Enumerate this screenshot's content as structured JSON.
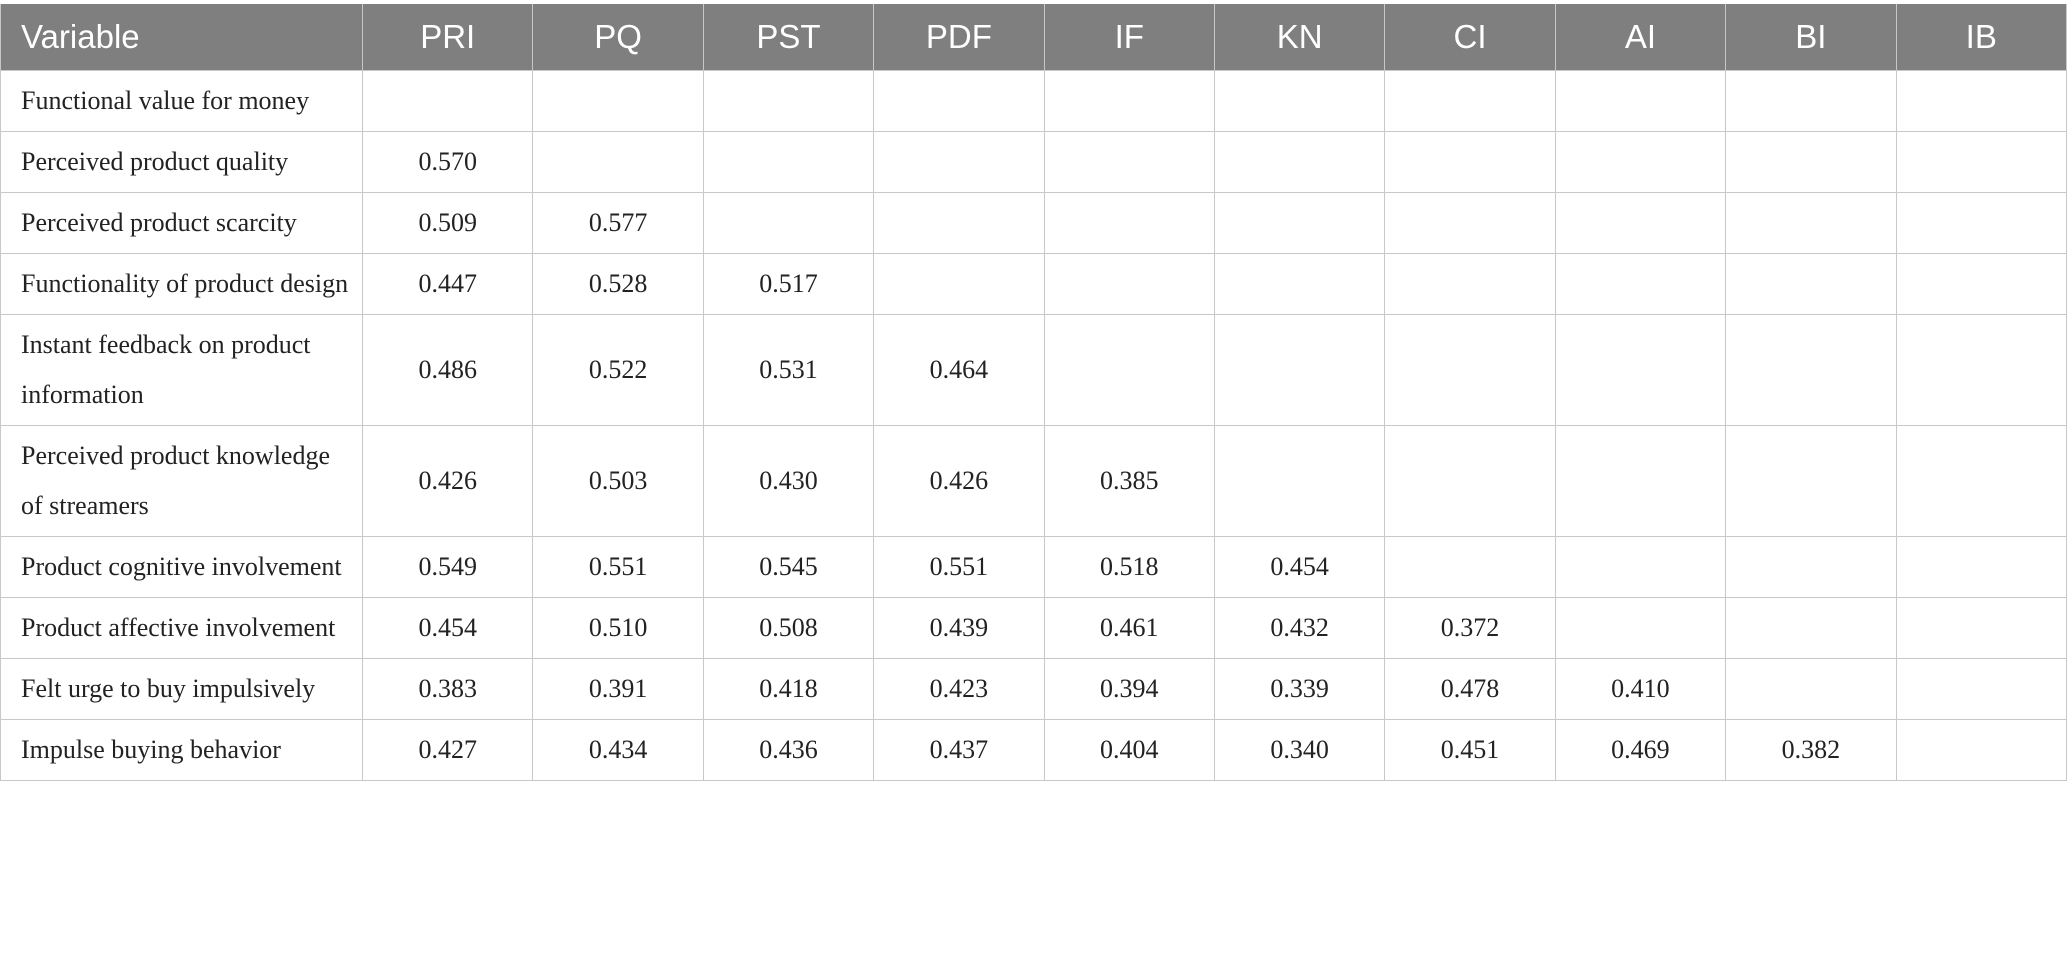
{
  "table": {
    "header": [
      "Variable",
      "PRI",
      "PQ",
      "PST",
      "PDF",
      "IF",
      "KN",
      "CI",
      "AI",
      "BI",
      "IB"
    ],
    "rows": [
      {
        "variable": "Functional value for money",
        "values": []
      },
      {
        "variable": "Perceived product quality",
        "values": [
          "0.570"
        ]
      },
      {
        "variable": "Perceived product scarcity",
        "values": [
          "0.509",
          "0.577"
        ]
      },
      {
        "variable": "Functionality of product design",
        "values": [
          "0.447",
          "0.528",
          "0.517"
        ]
      },
      {
        "variable": "Instant feedback on product information",
        "values": [
          "0.486",
          "0.522",
          "0.531",
          "0.464"
        ]
      },
      {
        "variable": "Perceived product knowledge of streamers",
        "values": [
          "0.426",
          "0.503",
          "0.430",
          "0.426",
          "0.385"
        ]
      },
      {
        "variable": "Product cognitive involvement",
        "values": [
          "0.549",
          "0.551",
          "0.545",
          "0.551",
          "0.518",
          "0.454"
        ]
      },
      {
        "variable": "Product affective involvement",
        "values": [
          "0.454",
          "0.510",
          "0.508",
          "0.439",
          "0.461",
          "0.432",
          "0.372"
        ]
      },
      {
        "variable": "Felt urge to buy impulsively",
        "values": [
          "0.383",
          "0.391",
          "0.418",
          "0.423",
          "0.394",
          "0.339",
          "0.478",
          "0.410"
        ]
      },
      {
        "variable": "Impulse buying behavior",
        "values": [
          "0.427",
          "0.434",
          "0.436",
          "0.437",
          "0.404",
          "0.340",
          "0.451",
          "0.469",
          "0.382"
        ]
      }
    ]
  }
}
